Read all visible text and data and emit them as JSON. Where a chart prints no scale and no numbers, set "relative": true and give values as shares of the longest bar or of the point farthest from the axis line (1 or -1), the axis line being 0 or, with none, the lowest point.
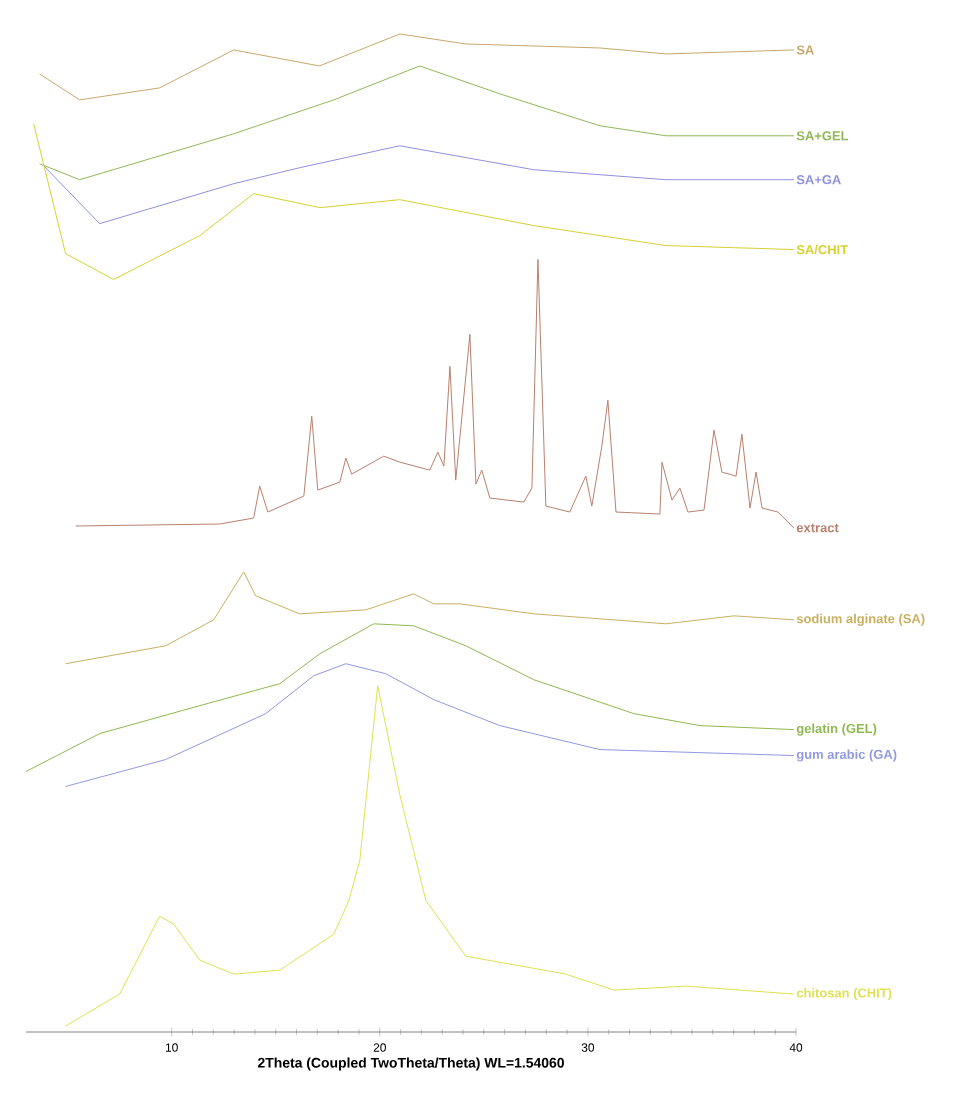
{
  "chart_data": {
    "type": "line",
    "relative": true,
    "xlabel": "2Theta (Coupled TwoTheta/Theta) WL=1.54060",
    "xlim": [
      3,
      40
    ],
    "xticks": [
      10,
      20,
      30,
      40
    ],
    "series": [
      {
        "name": "SA",
        "color": "#c8a868",
        "x": [
          3.65,
          5.58,
          9.42,
          12.98,
          17.1,
          20.96,
          24.13,
          30.58,
          33.75,
          39.9
        ],
        "values": [
          0.96,
          0.934,
          0.946,
          0.984,
          0.968,
          1.0,
          0.99,
          0.986,
          0.98,
          0.984
        ]
      },
      {
        "name": "SA+GEL",
        "color": "#90b858",
        "x": [
          3.65,
          5.58,
          12.98,
          17.79,
          21.92,
          25.77,
          30.58,
          33.75,
          39.9
        ],
        "values": [
          0.87,
          0.854,
          0.9,
          0.934,
          0.968,
          0.94,
          0.908,
          0.898,
          0.898
        ]
      },
      {
        "name": "SA+GA",
        "color": "#9090e0",
        "x": [
          3.85,
          6.54,
          12.98,
          16.15,
          20.96,
          27.4,
          33.75,
          39.9
        ],
        "values": [
          0.868,
          0.81,
          0.85,
          0.866,
          0.888,
          0.864,
          0.854,
          0.854
        ]
      },
      {
        "name": "SA/CHIT",
        "color": "#d8d030",
        "x": [
          3.37,
          4.9,
          7.21,
          11.35,
          13.94,
          17.12,
          20.96,
          27.4,
          33.75,
          39.9
        ],
        "values": [
          0.91,
          0.78,
          0.754,
          0.798,
          0.84,
          0.826,
          0.834,
          0.808,
          0.788,
          0.784
        ]
      },
      {
        "name": "extract",
        "color": "#b8806c",
        "x": [
          5.38,
          12.31,
          13.94,
          14.23,
          14.62,
          16.35,
          16.73,
          17.02,
          18.08,
          18.37,
          18.65,
          20.19,
          20.96,
          22.4,
          22.79,
          23.08,
          23.37,
          23.65,
          24.33,
          24.62,
          24.9,
          25.29,
          26.92,
          27.31,
          27.6,
          27.98,
          29.13,
          29.9,
          30.19,
          30.67,
          30.96,
          31.35,
          33.46,
          33.56,
          34.04,
          34.42,
          34.81,
          35.58,
          36.06,
          36.44,
          37.12,
          37.4,
          37.79,
          38.08,
          38.37,
          39.13,
          39.9
        ],
        "values": [
          0.507,
          0.509,
          0.515,
          0.547,
          0.521,
          0.537,
          0.617,
          0.543,
          0.551,
          0.575,
          0.559,
          0.577,
          0.571,
          0.563,
          0.581,
          0.567,
          0.667,
          0.553,
          0.699,
          0.549,
          0.563,
          0.535,
          0.531,
          0.545,
          0.774,
          0.527,
          0.521,
          0.557,
          0.527,
          0.587,
          0.633,
          0.521,
          0.519,
          0.571,
          0.533,
          0.545,
          0.521,
          0.523,
          0.603,
          0.561,
          0.557,
          0.599,
          0.525,
          0.561,
          0.525,
          0.521,
          0.505
        ]
      },
      {
        "name": "sodium alginate (SA)",
        "color": "#c8b060",
        "x": [
          4.9,
          9.71,
          12.02,
          13.46,
          14.04,
          16.15,
          19.33,
          21.63,
          22.6,
          23.85,
          27.4,
          33.75,
          37.02,
          39.9
        ],
        "values": [
          0.369,
          0.387,
          0.413,
          0.461,
          0.437,
          0.419,
          0.423,
          0.439,
          0.429,
          0.429,
          0.419,
          0.409,
          0.417,
          0.413
        ]
      },
      {
        "name": "gelatin (GEL)",
        "color": "#90b850",
        "x": [
          3.0,
          6.54,
          11.35,
          15.19,
          17.12,
          19.71,
          21.63,
          24.13,
          27.4,
          32.21,
          35.38,
          39.9
        ],
        "values": [
          0.261,
          0.299,
          0.327,
          0.349,
          0.379,
          0.409,
          0.407,
          0.387,
          0.353,
          0.319,
          0.307,
          0.303
        ]
      },
      {
        "name": "gum arabic (GA)",
        "color": "#9098e0",
        "x": [
          4.9,
          9.71,
          14.52,
          16.83,
          18.37,
          20.29,
          22.6,
          25.77,
          30.58,
          39.9
        ],
        "values": [
          0.246,
          0.273,
          0.319,
          0.357,
          0.369,
          0.359,
          0.333,
          0.307,
          0.283,
          0.277
        ]
      },
      {
        "name": "chitosan (CHIT)",
        "color": "#e0e050",
        "x": [
          4.9,
          7.5,
          9.42,
          10.1,
          11.35,
          12.98,
          15.19,
          17.79,
          18.52,
          19.04,
          19.9,
          20.96,
          22.21,
          24.13,
          28.94,
          31.25,
          34.71,
          39.9
        ],
        "values": [
          0.006,
          0.038,
          0.116,
          0.108,
          0.072,
          0.058,
          0.062,
          0.098,
          0.132,
          0.172,
          0.347,
          0.238,
          0.132,
          0.076,
          0.058,
          0.042,
          0.046,
          0.038
        ]
      }
    ]
  }
}
